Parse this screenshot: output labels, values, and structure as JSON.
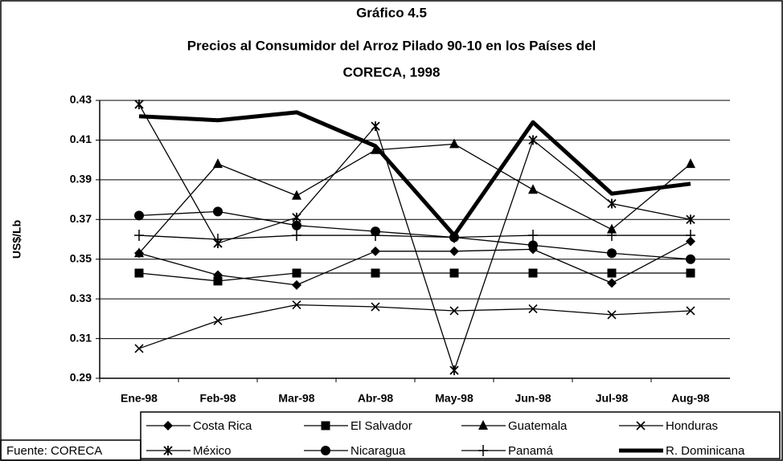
{
  "chart_data": {
    "type": "line",
    "title": [
      "Gráfico 4.5",
      "Precios al Consumidor del Arroz Pilado 90-10 en los Países del",
      "CORECA, 1998"
    ],
    "y_label": "US$/Lb",
    "source": "Fuente: CORECA",
    "categories": [
      "Ene-98",
      "Feb-98",
      "Mar-98",
      "Abr-98",
      "May-98",
      "Jun-98",
      "Jul-98",
      "Aug-98"
    ],
    "ylim": [
      0.29,
      0.43
    ],
    "yticks": [
      0.29,
      0.31,
      0.33,
      0.35,
      0.37,
      0.39,
      0.41,
      0.43
    ],
    "grid": true,
    "series": [
      {
        "name": "Costa Rica",
        "color": "#000000",
        "marker": "diamond",
        "line_width": 1.3,
        "values": [
          0.353,
          0.342,
          0.337,
          0.354,
          0.354,
          0.355,
          0.338,
          0.359
        ]
      },
      {
        "name": "El Salvador",
        "color": "#000000",
        "marker": "square",
        "line_width": 1.3,
        "values": [
          0.343,
          0.339,
          0.343,
          0.343,
          0.343,
          0.343,
          0.343,
          0.343
        ]
      },
      {
        "name": "Guatemala",
        "color": "#000000",
        "marker": "triangle",
        "line_width": 1.3,
        "values": [
          0.353,
          0.398,
          0.382,
          0.405,
          0.408,
          0.385,
          0.365,
          0.398
        ]
      },
      {
        "name": "Honduras",
        "color": "#000000",
        "marker": "x",
        "line_width": 1.3,
        "values": [
          0.305,
          0.319,
          0.327,
          0.326,
          0.324,
          0.325,
          0.322,
          0.324
        ]
      },
      {
        "name": "México",
        "color": "#000000",
        "marker": "asterisk",
        "line_width": 1.3,
        "values": [
          0.428,
          0.358,
          0.371,
          0.417,
          0.294,
          0.41,
          0.378,
          0.37
        ]
      },
      {
        "name": "Nicaragua",
        "color": "#000000",
        "marker": "circle",
        "line_width": 1.3,
        "values": [
          0.372,
          0.374,
          0.367,
          0.364,
          0.361,
          0.357,
          0.353,
          0.35
        ]
      },
      {
        "name": "Panamá",
        "color": "#000000",
        "marker": "plus",
        "line_width": 1.3,
        "values": [
          0.362,
          0.36,
          0.362,
          0.362,
          0.361,
          0.362,
          0.362,
          0.362
        ]
      },
      {
        "name": "R. Dominicana",
        "color": "#000000",
        "marker": "none",
        "line_width": 5,
        "values": [
          0.422,
          0.42,
          0.424,
          0.407,
          0.362,
          0.419,
          0.383,
          0.388
        ]
      }
    ]
  }
}
